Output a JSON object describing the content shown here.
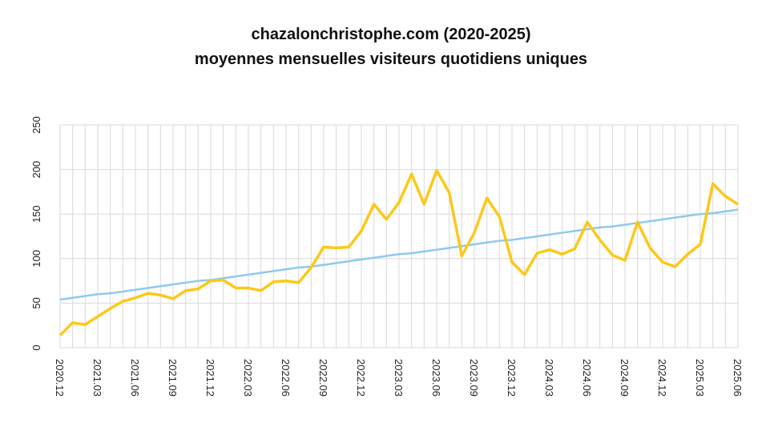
{
  "chart_data": {
    "type": "line",
    "title": "chazalonchristophe.com (2020-2025)",
    "subtitle": "moyennes mensuelles visiteurs quotidiens uniques",
    "categories": [
      "2020.12",
      null,
      null,
      "2021.03",
      null,
      null,
      "2021.06",
      null,
      null,
      "2021.09",
      null,
      null,
      "2021.12",
      null,
      null,
      "2022.03",
      null,
      null,
      "2022.06",
      null,
      null,
      "2022.09",
      null,
      null,
      "2022.12",
      null,
      null,
      "2023.03",
      null,
      null,
      "2023.06",
      null,
      null,
      "2023.09",
      null,
      null,
      "2023.12",
      null,
      null,
      "2024.03",
      null,
      null,
      "2024.06",
      null,
      null,
      "2024.09",
      null,
      null,
      "2024.12",
      null,
      null,
      "2025.03",
      null,
      null,
      "2025.06"
    ],
    "series": [
      {
        "color": "#8ec9f0",
        "values": [
          54,
          56,
          58,
          60,
          61,
          63,
          65,
          67,
          69,
          71,
          73,
          75,
          76,
          78,
          80,
          82,
          84,
          86,
          88,
          90,
          91,
          93,
          95,
          97,
          99,
          101,
          103,
          105,
          106,
          108,
          110,
          112,
          114,
          116,
          118,
          120,
          121,
          123,
          125,
          127,
          129,
          131,
          133,
          135,
          136,
          138,
          140,
          142,
          144,
          146,
          148,
          150,
          151,
          153,
          155
        ]
      },
      {
        "color": "#fcc81a",
        "values": [
          14,
          28,
          26,
          35,
          44,
          52,
          56,
          61,
          59,
          55,
          64,
          66,
          75,
          76,
          67,
          67,
          64,
          74,
          75,
          73,
          90,
          113,
          112,
          113,
          131,
          161,
          144,
          163,
          195,
          161,
          199,
          174,
          103,
          129,
          168,
          147,
          96,
          82,
          106,
          110,
          105,
          111,
          141,
          121,
          104,
          98,
          141,
          112,
          96,
          91,
          105,
          116,
          184,
          170,
          161
        ]
      }
    ],
    "ylim": [
      0,
      250
    ],
    "yticks": [
      0,
      50,
      100,
      150,
      200,
      250
    ],
    "grid": true
  }
}
